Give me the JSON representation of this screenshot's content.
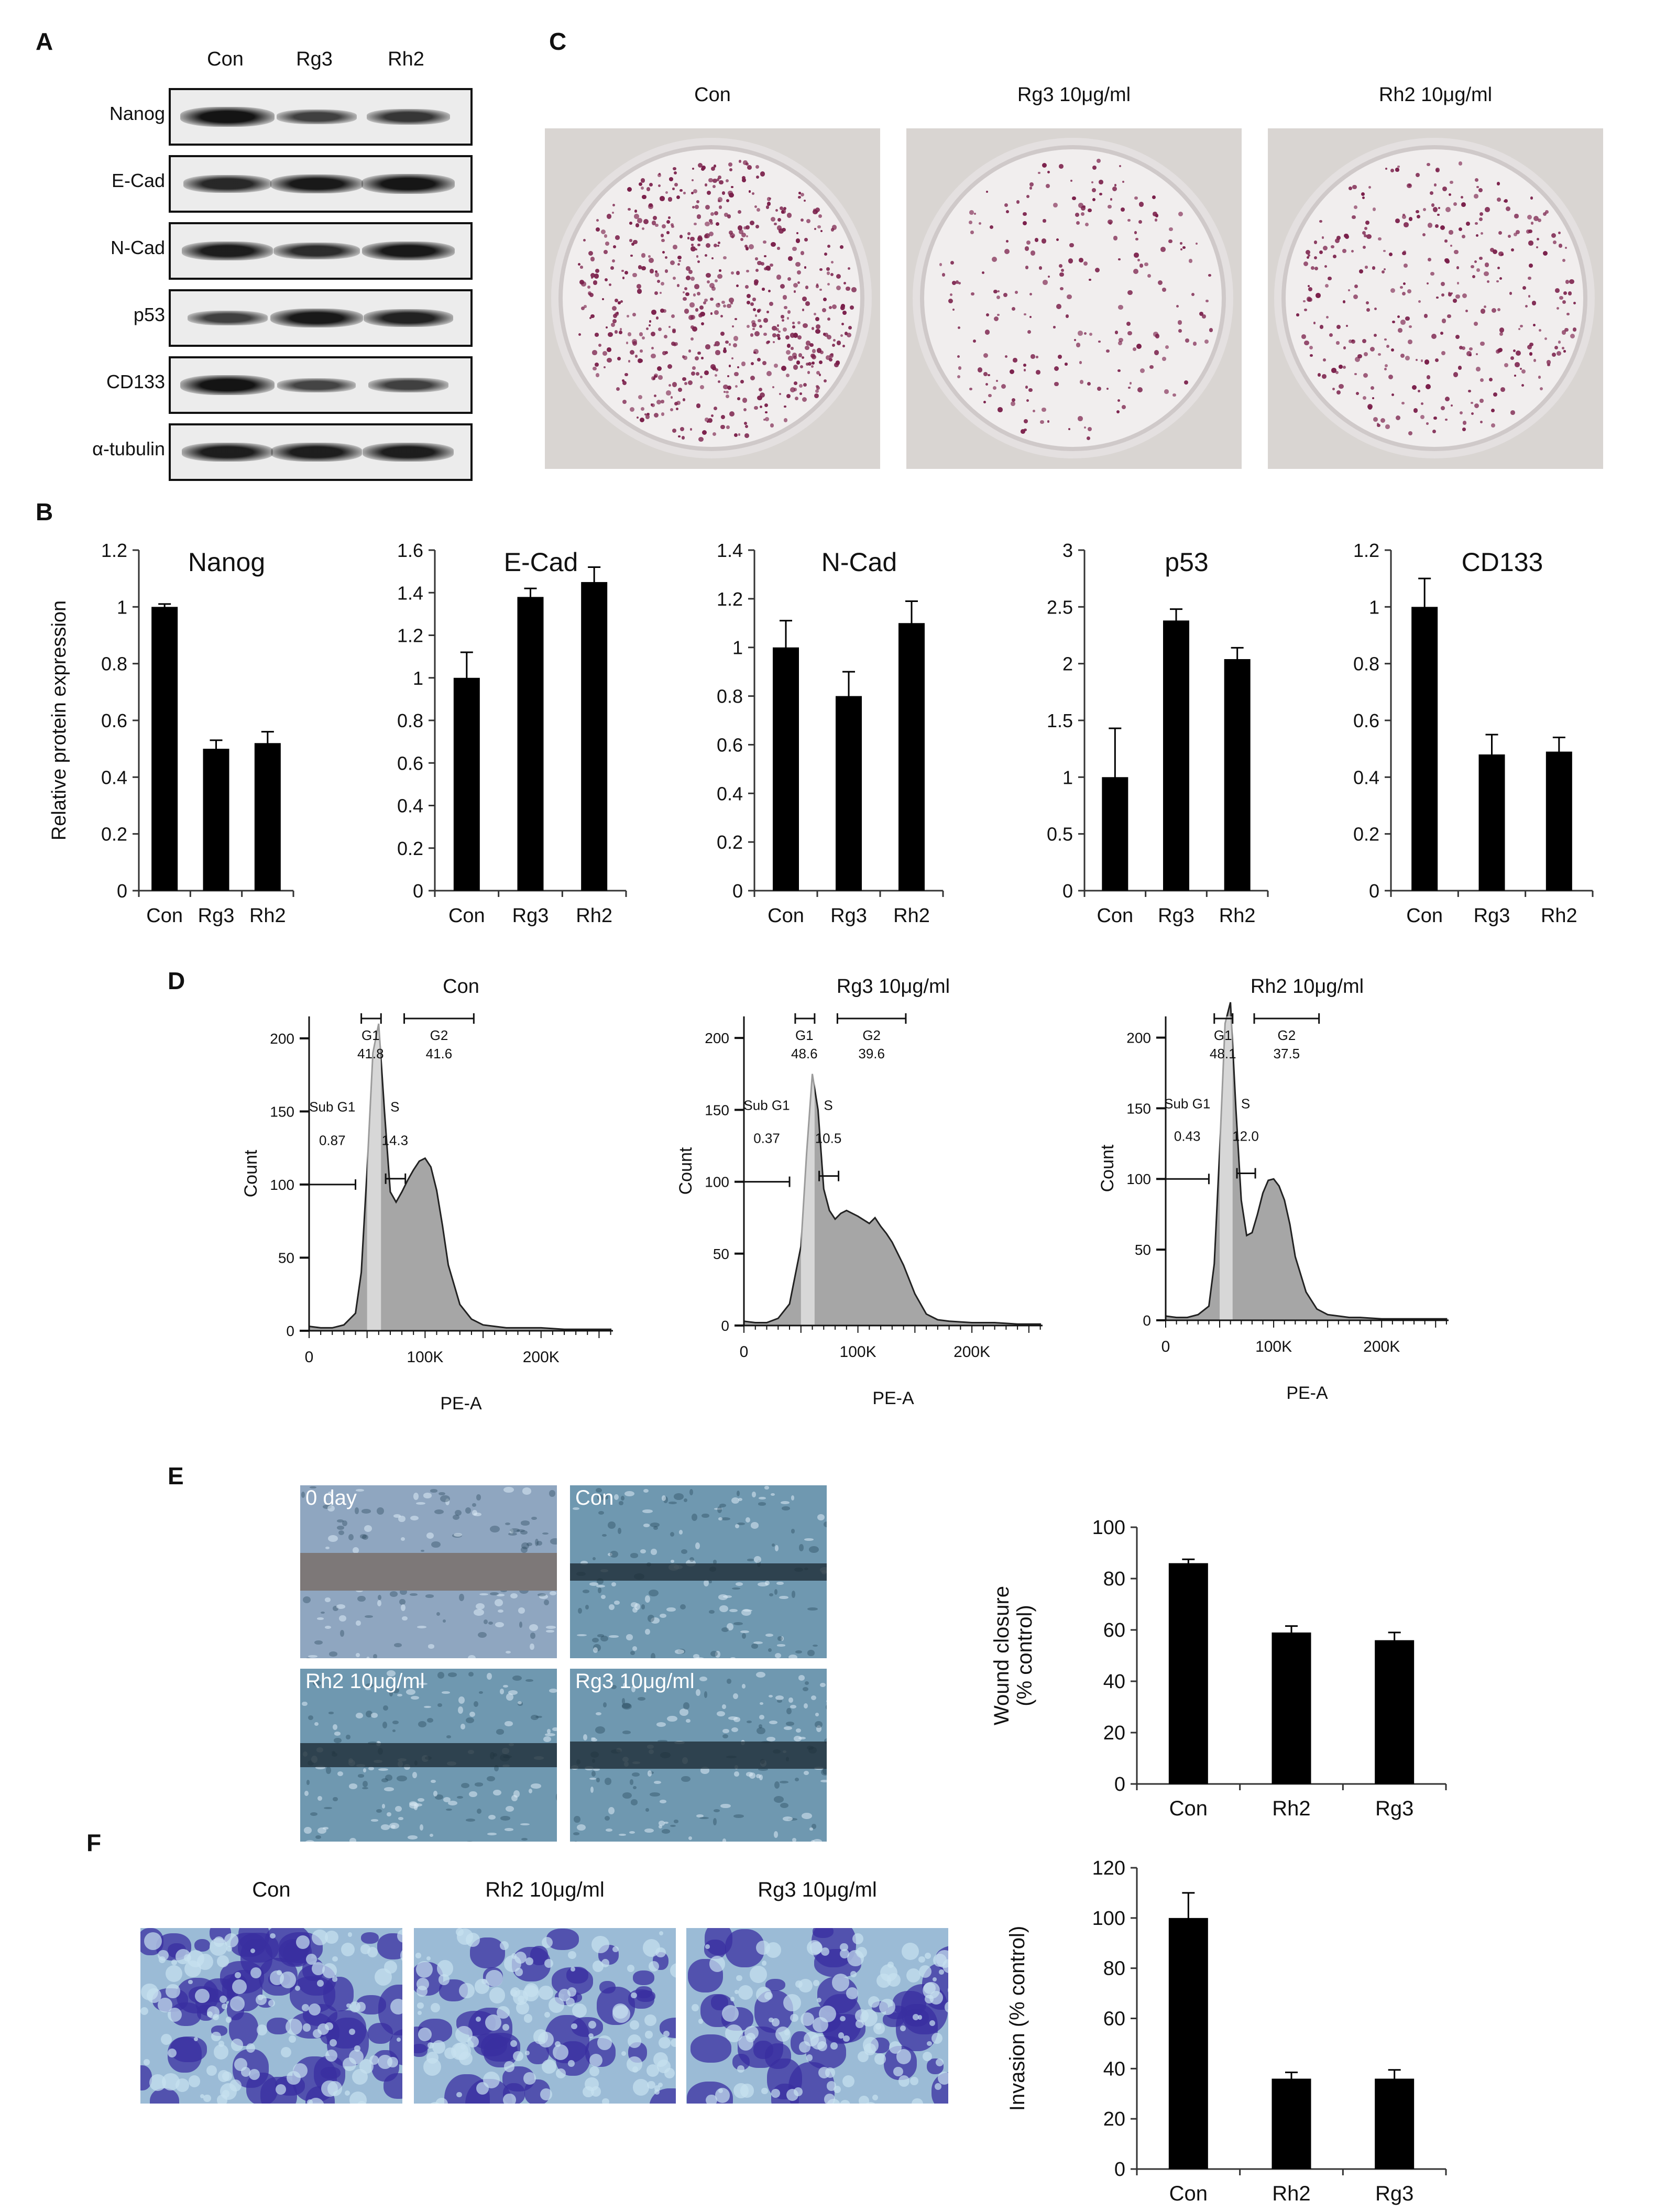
{
  "panels": {
    "a": "A",
    "b": "B",
    "c": "C",
    "d": "D",
    "e": "E",
    "f": "F"
  },
  "western_blot": {
    "lanes": [
      "Con",
      "Rg3",
      "Rh2"
    ],
    "proteins": [
      "Nanog",
      "E-Cad",
      "N-Cad",
      "p53",
      "CD133",
      "α-tubulin"
    ],
    "band_intensity": [
      [
        1.0,
        0.55,
        0.65
      ],
      [
        0.8,
        0.95,
        0.98
      ],
      [
        0.9,
        0.75,
        0.95
      ],
      [
        0.55,
        0.95,
        0.85
      ],
      [
        1.0,
        0.5,
        0.55
      ],
      [
        0.9,
        0.9,
        0.9
      ]
    ]
  },
  "colony_plates": [
    {
      "label": "Con",
      "density": 1.0
    },
    {
      "label": "Rg3 10μg/ml",
      "density": 0.35
    },
    {
      "label": "Rh2 10μg/ml",
      "density": 0.55
    }
  ],
  "chart_data": [
    {
      "type": "bar",
      "title": "Nanog",
      "ylabel": "Relative  protein expression",
      "categories": [
        "Con",
        "Rg3",
        "Rh2"
      ],
      "values": [
        1.0,
        0.5,
        0.52
      ],
      "errors": [
        0.01,
        0.03,
        0.04
      ],
      "ylim": [
        0,
        1.2
      ],
      "yticks": [
        "0",
        "0.2",
        "0.4",
        "0.6",
        "0.8",
        "1",
        "1.2"
      ],
      "grid": false
    },
    {
      "type": "bar",
      "title": "E-Cad",
      "ylabel": "",
      "categories": [
        "Con",
        "Rg3",
        "Rh2"
      ],
      "values": [
        1.0,
        1.38,
        1.45
      ],
      "errors": [
        0.12,
        0.04,
        0.07
      ],
      "ylim": [
        0,
        1.6
      ],
      "yticks": [
        "0",
        "0.2",
        "0.4",
        "0.6",
        "0.8",
        "1",
        "1.2",
        "1.4",
        "1.6"
      ],
      "grid": false
    },
    {
      "type": "bar",
      "title": "N-Cad",
      "ylabel": "",
      "categories": [
        "Con",
        "Rg3",
        "Rh2"
      ],
      "values": [
        1.0,
        0.8,
        1.1
      ],
      "errors": [
        0.11,
        0.1,
        0.09
      ],
      "ylim": [
        0,
        1.4
      ],
      "yticks": [
        "0",
        "0.2",
        "0.4",
        "0.6",
        "0.8",
        "1",
        "1.2",
        "1.4"
      ],
      "grid": false
    },
    {
      "type": "bar",
      "title": "p53",
      "ylabel": "",
      "categories": [
        "Con",
        "Rg3",
        "Rh2"
      ],
      "values": [
        1.0,
        2.38,
        2.04
      ],
      "errors": [
        0.43,
        0.1,
        0.1
      ],
      "ylim": [
        0,
        3
      ],
      "yticks": [
        "0",
        "0.5",
        "1",
        "1.5",
        "2",
        "2.5",
        "3"
      ],
      "grid": false
    },
    {
      "type": "bar",
      "title": "CD133",
      "ylabel": "",
      "categories": [
        "Con",
        "Rg3",
        "Rh2"
      ],
      "values": [
        1.0,
        0.48,
        0.49
      ],
      "errors": [
        0.1,
        0.07,
        0.05
      ],
      "ylim": [
        0,
        1.2
      ],
      "yticks": [
        "0",
        "0.2",
        "0.4",
        "0.6",
        "0.8",
        "1",
        "1.2"
      ],
      "grid": false
    },
    {
      "type": "area",
      "title": "Con",
      "xlabel": "PE-A",
      "ylabel": "Count",
      "xticks": [
        "0",
        "100K",
        "200K"
      ],
      "yticks": [
        "0",
        "50",
        "100",
        "150",
        "200"
      ],
      "ylim": [
        0,
        215
      ],
      "x": [
        0,
        10,
        20,
        30,
        40,
        45,
        50,
        55,
        60,
        65,
        70,
        75,
        80,
        85,
        90,
        95,
        100,
        105,
        110,
        115,
        120,
        130,
        140,
        150,
        160,
        170,
        180,
        200,
        220,
        240,
        260
      ],
      "y": [
        3,
        2,
        2,
        4,
        12,
        40,
        110,
        190,
        210,
        150,
        95,
        88,
        95,
        103,
        110,
        116,
        118,
        112,
        96,
        72,
        45,
        18,
        8,
        4,
        3,
        2,
        2,
        2,
        1,
        1,
        1
      ],
      "gates": [
        {
          "name": "Sub G1",
          "value": "0.87"
        },
        {
          "name": "G1",
          "value": "41.8"
        },
        {
          "name": "S",
          "value": "14.3"
        },
        {
          "name": "G2",
          "value": "41.6"
        }
      ]
    },
    {
      "type": "area",
      "title": "Rg3 10μg/ml",
      "xlabel": "PE-A",
      "ylabel": "Count",
      "xticks": [
        "0",
        "100K",
        "200K"
      ],
      "yticks": [
        "0",
        "50",
        "100",
        "150",
        "200"
      ],
      "ylim": [
        0,
        215
      ],
      "x": [
        0,
        10,
        20,
        30,
        40,
        50,
        55,
        60,
        65,
        70,
        75,
        80,
        85,
        90,
        100,
        110,
        115,
        120,
        125,
        130,
        140,
        150,
        160,
        170,
        180,
        200,
        220,
        240,
        260
      ],
      "y": [
        3,
        2,
        2,
        5,
        15,
        55,
        120,
        175,
        150,
        95,
        80,
        74,
        78,
        80,
        76,
        71,
        75,
        69,
        64,
        58,
        42,
        22,
        8,
        4,
        3,
        2,
        2,
        1,
        1
      ],
      "gates": [
        {
          "name": "Sub G1",
          "value": "0.37"
        },
        {
          "name": "G1",
          "value": "48.6"
        },
        {
          "name": "S",
          "value": "10.5"
        },
        {
          "name": "G2",
          "value": "39.6"
        }
      ]
    },
    {
      "type": "area",
      "title": "Rh2 10μg/ml",
      "xlabel": "PE-A",
      "ylabel": "Count",
      "xticks": [
        "0",
        "100K",
        "200K"
      ],
      "yticks": [
        "0",
        "50",
        "100",
        "150",
        "200"
      ],
      "ylim": [
        0,
        215
      ],
      "x": [
        0,
        10,
        20,
        30,
        40,
        45,
        50,
        55,
        60,
        65,
        70,
        75,
        80,
        85,
        90,
        95,
        100,
        105,
        110,
        115,
        120,
        130,
        140,
        150,
        160,
        170,
        180,
        200,
        220,
        240,
        260
      ],
      "y": [
        3,
        2,
        2,
        4,
        10,
        40,
        120,
        210,
        225,
        150,
        85,
        60,
        62,
        75,
        90,
        99,
        100,
        95,
        85,
        68,
        45,
        20,
        8,
        4,
        3,
        2,
        2,
        1,
        1,
        1,
        1
      ],
      "gates": [
        {
          "name": "Sub G1",
          "value": "0.43"
        },
        {
          "name": "G1",
          "value": "48.1"
        },
        {
          "name": "S",
          "value": "12.0"
        },
        {
          "name": "G2",
          "value": "37.5"
        }
      ]
    },
    {
      "type": "bar",
      "title": "",
      "ylabel": "Wound closure\n(% control)",
      "categories": [
        "Con",
        "Rh2",
        "Rg3"
      ],
      "values": [
        86,
        59,
        56
      ],
      "errors": [
        1.5,
        2.5,
        3
      ],
      "ylim": [
        0,
        100
      ],
      "yticks": [
        "0",
        "20",
        "40",
        "60",
        "80",
        "100"
      ],
      "grid": false
    },
    {
      "type": "bar",
      "title": "",
      "ylabel": "Invasion  (% control)",
      "categories": [
        "Con",
        "Rh2",
        "Rg3"
      ],
      "values": [
        100,
        36,
        36
      ],
      "errors": [
        10,
        2.5,
        3.5
      ],
      "ylim": [
        0,
        120
      ],
      "yticks": [
        "0",
        "20",
        "40",
        "60",
        "80",
        "100",
        "120"
      ],
      "grid": false
    }
  ],
  "wound_images": [
    {
      "label": "0 day",
      "gap": 0.22
    },
    {
      "label": "Con",
      "gap": 0.1
    },
    {
      "label": "Rh2  10μg/ml",
      "gap": 0.14
    },
    {
      "label": "Rg3  10μg/ml",
      "gap": 0.16
    }
  ],
  "invasion_images": [
    {
      "label": "Con"
    },
    {
      "label": "Rh2  10μg/ml"
    },
    {
      "label": "Rg3  10μg/ml"
    }
  ],
  "colors": {
    "bar": "#000000",
    "histogram_fill": "#a6a6a6",
    "colony": "#7a1f4a",
    "crystal_violet": "#3a2fa0",
    "phase_blue": "#6f98b0"
  }
}
